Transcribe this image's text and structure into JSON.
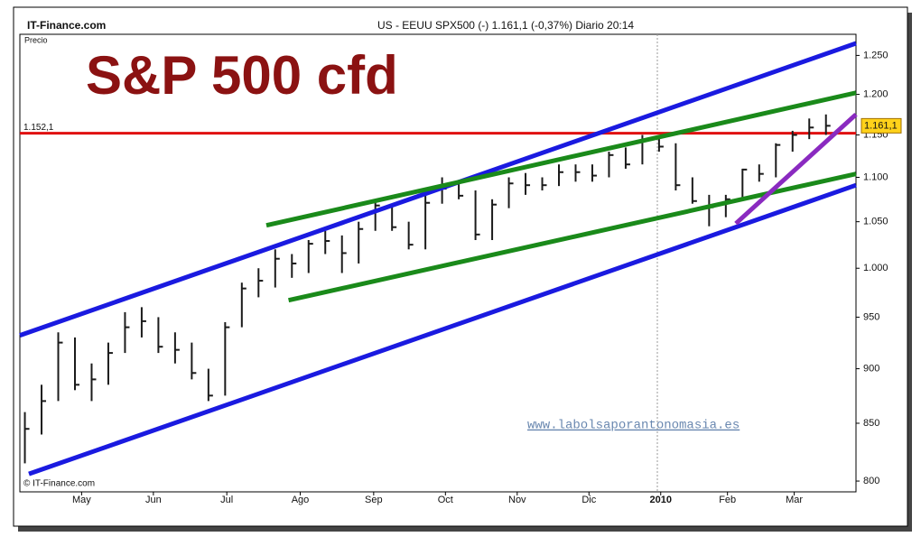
{
  "chart_data": {
    "type": "hlc",
    "site": "IT-Finance.com",
    "header": "US - EEUU SPX500 (-)   1.161,1 (-0,37%)   Diario  20:14",
    "y_label": "Precio",
    "title": "S&P 500 cfd",
    "copyright": "© IT-Finance.com",
    "watermark": "www.labolsaporantonomasia.es",
    "log_scale": true,
    "grid": false,
    "color": "#1b1b1b",
    "ylim": [
      791,
      1278
    ],
    "xlim": [
      -0.3,
      49.8
    ],
    "yticks": [
      {
        "value": 1250,
        "label": "1.250"
      },
      {
        "value": 1200,
        "label": "1.200"
      },
      {
        "value": 1150,
        "label": "1.150"
      },
      {
        "value": 1100,
        "label": "1.100"
      },
      {
        "value": 1050,
        "label": "1.050"
      },
      {
        "value": 1000,
        "label": "1.000"
      },
      950,
      900,
      850,
      800
    ],
    "xticks": [
      {
        "value": 3.4,
        "label": "May"
      },
      {
        "value": 7.7,
        "label": "Jun"
      },
      {
        "value": 12.1,
        "label": "Jul"
      },
      {
        "value": 16.5,
        "label": "Ago"
      },
      {
        "value": 20.9,
        "label": "Sep"
      },
      {
        "value": 25.2,
        "label": "Oct"
      },
      {
        "value": 29.5,
        "label": "Nov"
      },
      {
        "value": 33.8,
        "label": "Dic"
      },
      {
        "value": 38.1,
        "label": "2010"
      },
      {
        "value": 42.1,
        "label": "Feb"
      },
      {
        "value": 46.1,
        "label": "Mar"
      }
    ],
    "high": [
      860,
      885,
      935,
      930,
      905,
      925,
      955,
      960,
      950,
      935,
      925,
      900,
      945,
      985,
      1000,
      1020,
      1015,
      1030,
      1040,
      1035,
      1050,
      1075,
      1070,
      1050,
      1080,
      1100,
      1095,
      1085,
      1075,
      1100,
      1105,
      1100,
      1115,
      1115,
      1115,
      1130,
      1135,
      1150,
      1150,
      1140,
      1100,
      1080,
      1080,
      1110,
      1115,
      1140,
      1155,
      1170,
      1175
    ],
    "low": [
      815,
      840,
      870,
      880,
      870,
      885,
      915,
      930,
      915,
      905,
      890,
      870,
      875,
      940,
      970,
      980,
      990,
      995,
      1015,
      995,
      1005,
      1040,
      1040,
      1020,
      1020,
      1070,
      1075,
      1030,
      1030,
      1065,
      1080,
      1085,
      1090,
      1095,
      1095,
      1100,
      1110,
      1115,
      1130,
      1085,
      1070,
      1045,
      1055,
      1075,
      1095,
      1100,
      1130,
      1145,
      1150
    ],
    "close": [
      845,
      870,
      925,
      885,
      890,
      915,
      940,
      946,
      921,
      918,
      896,
      875,
      940,
      979,
      987,
      1010,
      1005,
      1026,
      1029,
      1016,
      1042,
      1068,
      1044,
      1025,
      1071,
      1087,
      1079,
      1036,
      1069,
      1093,
      1091,
      1091,
      1106,
      1106,
      1102,
      1126,
      1115,
      1144,
      1136,
      1091,
      1073,
      1066,
      1075,
      1109,
      1104,
      1138,
      1150,
      1159,
      1161.1
    ],
    "last": {
      "value": 1161.1,
      "label": "1.161,1"
    },
    "level": {
      "value": 1152.1,
      "label": "1.152,1",
      "color": "#e01010"
    },
    "lines": [
      {
        "color": "#1a1ae0",
        "x": [
          -0.3,
          49.8
        ],
        "values": [
          932,
          1266
        ]
      },
      {
        "color": "#1a1ae0",
        "x": [
          0.24,
          49.8
        ],
        "values": [
          806,
          1091
        ]
      },
      {
        "color": "#1a8a1a",
        "x": [
          14.47,
          49.8
        ],
        "values": [
          1046,
          1202
        ]
      },
      {
        "color": "#1a8a1a",
        "x": [
          15.8,
          49.8
        ],
        "values": [
          967,
          1104
        ]
      },
      {
        "color": "#8a2ac0",
        "x": [
          42.6,
          49.8
        ],
        "values": [
          1048,
          1175
        ]
      }
    ]
  }
}
